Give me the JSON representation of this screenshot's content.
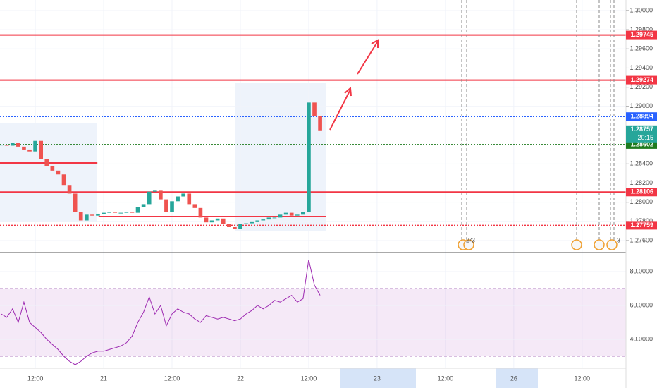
{
  "chart_data": {
    "type": "candlestick",
    "x": [
      6,
      7,
      8,
      9,
      10,
      11,
      12,
      13,
      14,
      15,
      16,
      17,
      18,
      19,
      20,
      21,
      22,
      23,
      24,
      25,
      26,
      27,
      28,
      29,
      30,
      31,
      32,
      33,
      34,
      35,
      36,
      37,
      38,
      39,
      40,
      41,
      42,
      43,
      44,
      45,
      46,
      47,
      48,
      49,
      50,
      51,
      52,
      53,
      54,
      55,
      56,
      57,
      58,
      59,
      60,
      61,
      62
    ],
    "close": [
      1.286,
      1.2859,
      1.2862,
      1.2858,
      1.2855,
      1.2853,
      1.2864,
      1.2845,
      1.2838,
      1.2833,
      1.2829,
      1.2818,
      1.2809,
      1.279,
      1.2781,
      1.2787,
      1.2786,
      1.2788,
      1.2789,
      1.279,
      1.2789,
      1.2789,
      1.279,
      1.2789,
      1.2795,
      1.2798,
      1.2811,
      1.2812,
      1.2803,
      1.279,
      1.2801,
      1.2806,
      1.2809,
      1.2798,
      1.2794,
      1.2784,
      1.2779,
      1.2781,
      1.2783,
      1.2777,
      1.2774,
      1.2772,
      1.2777,
      1.2778,
      1.278,
      1.2781,
      1.2782,
      1.2784,
      1.2784,
      1.2787,
      1.2789,
      1.2786,
      1.2787,
      1.279,
      1.2904,
      1.289,
      1.2875
    ],
    "up_color": "#26a69a",
    "down_color": "#ef5350",
    "xlim": [
      5.8,
      115.7
    ],
    "xticks": [
      {
        "value": 12,
        "label": "12:00"
      },
      {
        "value": 24,
        "label": "21"
      },
      {
        "value": 36,
        "label": "12:00"
      },
      {
        "value": 48,
        "label": "22"
      },
      {
        "value": 60,
        "label": "12:00"
      },
      {
        "value": 72,
        "label": "23"
      },
      {
        "value": 84,
        "label": "12:00"
      },
      {
        "value": 96,
        "label": "26"
      },
      {
        "value": 108,
        "label": "12:00"
      }
    ],
    "ylim": [
      1.27475,
      1.3011
    ],
    "yticks": [
      {
        "value": 1.276,
        "label": "1.27600"
      },
      {
        "value": 1.278,
        "label": "1.27800"
      },
      {
        "value": 1.28,
        "label": "1.28000"
      },
      {
        "value": 1.282,
        "label": "1.28200"
      },
      {
        "value": 1.284,
        "label": "1.28400"
      },
      {
        "value": 1.29,
        "label": "1.29000"
      },
      {
        "value": 1.292,
        "label": "1.29200"
      },
      {
        "value": 1.294,
        "label": "1.29400"
      },
      {
        "value": 1.296,
        "label": "1.29600"
      },
      {
        "value": 1.298,
        "label": "1.29800"
      },
      {
        "value": 1.3,
        "label": "1.30000"
      }
    ],
    "grid": true,
    "levels": [
      {
        "value": 1.29745,
        "color": "#f23645",
        "style": "solid"
      },
      {
        "value": 1.29274,
        "color": "#f23645",
        "style": "solid"
      },
      {
        "value": 1.28894,
        "color": "#2962ff",
        "style": "dotted"
      },
      {
        "value": 1.28602,
        "color": "#1e7b1e",
        "style": "dotted"
      },
      {
        "value": 1.28106,
        "color": "#f23645",
        "style": "solid"
      },
      {
        "value": 1.27759,
        "color": "#f23645",
        "style": "dotted"
      }
    ],
    "segments": [
      {
        "value": 1.2841,
        "x": [
          5.8,
          22.9
        ],
        "color": "#f23645"
      },
      {
        "value": 1.2785,
        "x": [
          23.1,
          63.1
        ],
        "color": "#f23645"
      }
    ],
    "current_price": {
      "value": 1.28757,
      "countdown": "20:15",
      "color": "#26a69a"
    },
    "event_labels": [
      "24",
      "3",
      "3"
    ],
    "rsi": {
      "values": [
        55,
        53,
        58,
        50,
        62,
        50,
        47,
        44,
        40,
        37,
        34,
        30,
        27,
        25,
        27,
        30,
        32,
        33,
        33,
        34,
        35,
        36,
        38,
        42,
        50,
        56,
        65,
        55,
        60,
        48,
        55,
        58,
        56,
        55,
        52,
        50,
        54,
        53,
        52,
        53,
        52,
        51,
        52,
        55,
        57,
        60,
        58,
        60,
        63,
        62,
        64,
        66,
        62,
        64,
        87,
        72,
        66
      ],
      "color": "#9c27b0",
      "ylim": [
        22.9,
        90.4
      ],
      "yticks": [
        {
          "value": 40,
          "label": "40.0000"
        },
        {
          "value": 60,
          "label": "60.0000"
        },
        {
          "value": 80,
          "label": "80.0000"
        }
      ],
      "band": [
        30,
        70
      ]
    }
  }
}
